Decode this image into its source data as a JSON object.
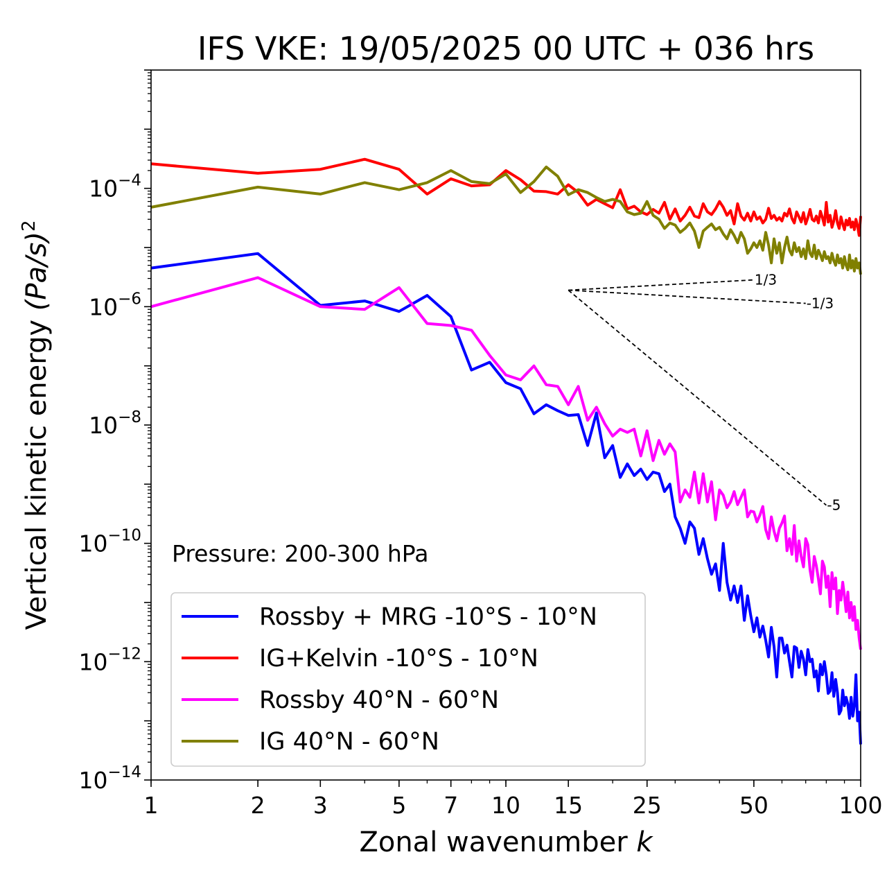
{
  "chart_data": {
    "type": "line",
    "title": "IFS VKE: 19/05/2025 00 UTC + 036 hrs",
    "xlabel": "Zonal wavenumber",
    "xlabel_var": "k",
    "ylabel": "Vertical kinetic energy",
    "ylabel_unit": "(Pa/s)",
    "ylabel_exp": "2",
    "xscale": "log",
    "yscale": "log",
    "xlim": [
      1,
      100
    ],
    "ylim": [
      1e-14,
      0.01
    ],
    "grid": false,
    "legend_position": "lower-left",
    "annotation": "Pressure: 200-300 hPa",
    "x_ticks": [
      1,
      2,
      3,
      5,
      7,
      10,
      15,
      25,
      50,
      100
    ],
    "x_tick_labels": [
      "1",
      "2",
      "3",
      "5",
      "7",
      "10",
      "15",
      "25",
      "50",
      "100"
    ],
    "y_ticks": [
      {
        "value": 0.0001,
        "base": "10",
        "exp": "−4"
      },
      {
        "value": 1e-06,
        "base": "10",
        "exp": "−6"
      },
      {
        "value": 1e-08,
        "base": "10",
        "exp": "−8"
      },
      {
        "value": 1e-10,
        "base": "10",
        "exp": "−10"
      },
      {
        "value": 1e-12,
        "base": "10",
        "exp": "−12"
      },
      {
        "value": 1e-14,
        "base": "10",
        "exp": "−14"
      }
    ],
    "reference_slopes": [
      {
        "label": "1/3",
        "exponent": 0.3333,
        "x_start": 15,
        "x_end": 50,
        "y_start": 1.9e-06
      },
      {
        "label": "-1/3",
        "exponent": -0.3333,
        "x_start": 15,
        "x_end": 70,
        "y_start": 1.9e-06
      },
      {
        "label": "-5",
        "exponent": -5,
        "x_start": 15,
        "x_end": 80,
        "y_start": 1.9e-06
      }
    ],
    "series": [
      {
        "name": "Rossby + MRG -10°S - 10°N",
        "color": "#0000ff",
        "x": [
          1,
          2,
          3,
          4,
          5,
          6,
          7,
          8,
          9,
          10,
          11,
          12,
          13,
          14,
          15,
          16,
          17,
          18,
          19,
          20,
          21,
          22,
          23,
          24,
          25,
          26,
          27,
          28,
          29,
          30,
          31,
          32,
          33,
          34,
          35,
          36,
          37,
          38,
          39,
          40,
          41,
          42,
          43,
          44,
          45,
          46,
          47,
          48,
          49,
          50,
          51,
          52,
          53,
          54,
          55,
          56,
          57,
          58,
          59,
          60,
          61,
          62,
          63,
          64,
          65,
          66,
          67,
          68,
          69,
          70,
          71,
          72,
          73,
          74,
          75,
          76,
          77,
          78,
          79,
          80,
          81,
          82,
          83,
          84,
          85,
          86,
          87,
          88,
          89,
          90,
          91,
          92,
          93,
          94,
          95,
          96,
          97,
          98,
          99,
          100
        ],
        "values": [
          4.5e-06,
          7.9e-06,
          1.05e-06,
          1.25e-06,
          8.3e-07,
          1.55e-06,
          6.8e-07,
          8.5e-08,
          1.15e-07,
          5.2e-08,
          4.1e-08,
          1.55e-08,
          2.2e-08,
          1.75e-08,
          1.45e-08,
          1.5e-08,
          4.5e-09,
          1.6e-08,
          2.8e-09,
          4.5e-09,
          1.3e-09,
          2.2e-09,
          1.4e-09,
          1.8e-09,
          1.2e-09,
          1.6e-09,
          1.5e-09,
          7.5e-10,
          1e-09,
          2.8e-10,
          1.8e-10,
          1e-10,
          2.3e-10,
          1.8e-10,
          6.5e-11,
          1.2e-10,
          5.5e-11,
          3e-11,
          4.5e-11,
          1.6e-11,
          1e-10,
          2.2e-11,
          1.1e-11,
          1.9e-11,
          1e-11,
          1.9e-11,
          5e-12,
          1.3e-11,
          6e-12,
          3.2e-12,
          5.5e-12,
          2.6e-12,
          4e-12,
          2.3e-12,
          1.2e-12,
          3.8e-12,
          1.8e-12,
          5.5e-13,
          2.5e-12,
          2.5e-12,
          1.4e-12,
          1.9e-12,
          1e-12,
          5.5e-13,
          1.8e-12,
          1.7e-12,
          8e-13,
          1.5e-12,
          1.1e-12,
          6e-13,
          1.6e-12,
          1e-12,
          1.1e-12,
          5.5e-13,
          7e-13,
          3.2e-13,
          9e-13,
          6e-13,
          1e-12,
          6e-13,
          2.9e-13,
          3.2e-13,
          6.5e-13,
          2.6e-13,
          5e-13,
          3e-13,
          1.3e-13,
          1.5e-13,
          3.3e-13,
          1.8e-13,
          2.5e-13,
          1.9e-13,
          1.1e-13,
          2.5e-13,
          1.2e-13,
          1.8e-13,
          6e-13,
          1e-13,
          1.4e-13,
          4e-14
        ]
      },
      {
        "name": "IG+Kelvin -10°S - 10°N",
        "color": "#ff0000",
        "x": [
          1,
          2,
          3,
          4,
          5,
          6,
          7,
          8,
          9,
          10,
          11,
          12,
          13,
          14,
          15,
          16,
          17,
          18,
          19,
          20,
          21,
          22,
          23,
          24,
          25,
          26,
          27,
          28,
          29,
          30,
          31,
          32,
          33,
          34,
          35,
          36,
          37,
          38,
          39,
          40,
          41,
          42,
          43,
          44,
          45,
          46,
          47,
          48,
          49,
          50,
          51,
          52,
          53,
          54,
          55,
          56,
          57,
          58,
          59,
          60,
          61,
          62,
          63,
          64,
          65,
          66,
          67,
          68,
          69,
          70,
          71,
          72,
          73,
          74,
          75,
          76,
          77,
          78,
          79,
          80,
          81,
          82,
          83,
          84,
          85,
          86,
          87,
          88,
          89,
          90,
          91,
          92,
          93,
          94,
          95,
          96,
          97,
          98,
          99,
          100
        ],
        "values": [
          0.00026,
          0.00018,
          0.00021,
          0.00031,
          0.00021,
          8e-05,
          0.000145,
          0.00011,
          0.000115,
          0.0002,
          0.00014,
          9e-05,
          8.8e-05,
          8e-05,
          0.000115,
          8.5e-05,
          5.2e-05,
          6.5e-05,
          5.5e-05,
          4.7e-05,
          9.5e-05,
          4.5e-05,
          5e-05,
          4e-05,
          3.6e-05,
          4.4e-05,
          3.8e-05,
          5.8e-05,
          3e-05,
          4.5e-05,
          2.8e-05,
          3.5e-05,
          4.8e-05,
          3.4e-05,
          3.2e-05,
          5.5e-05,
          4e-05,
          3.6e-05,
          4.5e-05,
          6e-05,
          4.8e-05,
          3.5e-05,
          4.2e-05,
          2.5e-05,
          5.5e-05,
          3.4e-05,
          2.9e-05,
          3.8e-05,
          2.8e-05,
          4e-05,
          3e-05,
          3.3e-05,
          2.6e-05,
          3e-05,
          4.6e-05,
          3.1e-05,
          3.5e-05,
          2.9e-05,
          3.2e-05,
          2.8e-05,
          3.8e-05,
          3.4e-05,
          4.5e-05,
          3.1e-05,
          2.6e-05,
          4e-05,
          3.3e-05,
          2.7e-05,
          3.9e-05,
          2.5e-05,
          3.2e-05,
          4.4e-05,
          3e-05,
          2.8e-05,
          3.4e-05,
          2.6e-05,
          4.1e-05,
          3.2e-05,
          2.4e-05,
          5.8e-05,
          2.7e-05,
          3.5e-05,
          2.2e-05,
          2.8e-05,
          4.2e-05,
          2.6e-05,
          2.1e-05,
          3.3e-05,
          2.5e-05,
          2e-05,
          2.9e-05,
          2.4e-05,
          3.1e-05,
          2.2e-05,
          2.7e-05,
          2e-05,
          3e-05,
          2.3e-05,
          1.6e-05,
          3.4e-05
        ]
      },
      {
        "name": "Rossby 40°N - 60°N",
        "color": "#ff00ff",
        "x": [
          1,
          2,
          3,
          4,
          5,
          6,
          7,
          8,
          9,
          10,
          11,
          12,
          13,
          14,
          15,
          16,
          17,
          18,
          19,
          20,
          21,
          22,
          23,
          24,
          25,
          26,
          27,
          28,
          29,
          30,
          31,
          32,
          33,
          34,
          35,
          36,
          37,
          38,
          39,
          40,
          41,
          42,
          43,
          44,
          45,
          46,
          47,
          48,
          49,
          50,
          51,
          52,
          53,
          54,
          55,
          56,
          57,
          58,
          59,
          60,
          61,
          62,
          63,
          64,
          65,
          66,
          67,
          68,
          69,
          70,
          71,
          72,
          73,
          74,
          75,
          76,
          77,
          78,
          79,
          80,
          81,
          82,
          83,
          84,
          85,
          86,
          87,
          88,
          89,
          90,
          91,
          92,
          93,
          94,
          95,
          96,
          97,
          98,
          99,
          100
        ],
        "values": [
          1e-06,
          3.1e-06,
          1e-06,
          9e-07,
          2.1e-06,
          5.2e-07,
          4.8e-07,
          4e-07,
          1.5e-07,
          7e-08,
          5.8e-08,
          1e-07,
          4.8e-08,
          4.5e-08,
          2.2e-08,
          4.5e-08,
          1.2e-08,
          2e-08,
          1.05e-08,
          6.5e-09,
          8.5e-09,
          7.5e-09,
          8.5e-09,
          3e-09,
          8e-09,
          2.5e-09,
          5.5e-09,
          3.2e-09,
          4.8e-09,
          3.5e-09,
          5e-10,
          8e-10,
          6e-10,
          1.6e-09,
          4.8e-10,
          1.5e-09,
          5e-10,
          1.1e-09,
          2.5e-10,
          8e-10,
          6.5e-10,
          4e-10,
          5e-10,
          7.5e-10,
          4.5e-10,
          6e-10,
          8e-10,
          2.8e-10,
          3.5e-10,
          3.4e-10,
          2.3e-10,
          3e-10,
          4.2e-10,
          1.7e-10,
          1.2e-10,
          2.8e-10,
          1.6e-10,
          1.1e-10,
          1.8e-10,
          2.2e-10,
          2.9e-10,
          7.5e-11,
          1.2e-10,
          6.5e-11,
          2e-10,
          5e-11,
          1.1e-10,
          6e-11,
          4e-11,
          1.2e-10,
          9.5e-11,
          3.5e-11,
          2.2e-11,
          6e-11,
          4.2e-11,
          2.5e-11,
          1.4e-11,
          5e-11,
          4e-11,
          1.8e-11,
          2.8e-11,
          8.5e-12,
          3.2e-11,
          1.7e-11,
          2.6e-11,
          6.5e-12,
          1.6e-11,
          1.1e-11,
          2.2e-11,
          1.3e-11,
          7e-12,
          1.5e-11,
          5.5e-12,
          1e-11,
          5e-12,
          8.5e-12,
          3.5e-12,
          5e-12,
          2.5e-12,
          1.6e-12
        ]
      },
      {
        "name": "IG 40°N - 60°N",
        "color": "#808000",
        "x": [
          1,
          2,
          3,
          4,
          5,
          6,
          7,
          8,
          9,
          10,
          11,
          12,
          13,
          14,
          15,
          16,
          17,
          18,
          19,
          20,
          21,
          22,
          23,
          24,
          25,
          26,
          27,
          28,
          29,
          30,
          31,
          32,
          33,
          34,
          35,
          36,
          37,
          38,
          39,
          40,
          41,
          42,
          43,
          44,
          45,
          46,
          47,
          48,
          49,
          50,
          51,
          52,
          53,
          54,
          55,
          56,
          57,
          58,
          59,
          60,
          61,
          62,
          63,
          64,
          65,
          66,
          67,
          68,
          69,
          70,
          71,
          72,
          73,
          74,
          75,
          76,
          77,
          78,
          79,
          80,
          81,
          82,
          83,
          84,
          85,
          86,
          87,
          88,
          89,
          90,
          91,
          92,
          93,
          94,
          95,
          96,
          97,
          98,
          99,
          100
        ],
        "values": [
          4.8e-05,
          0.000105,
          8e-05,
          0.000125,
          9.5e-05,
          0.000125,
          0.0002,
          0.00013,
          0.00012,
          0.000175,
          8.5e-05,
          0.00013,
          0.00023,
          0.00016,
          7.8e-05,
          9.5e-05,
          8.5e-05,
          7e-05,
          6e-05,
          6.5e-05,
          6e-05,
          4e-05,
          3.6e-05,
          3.8e-05,
          6e-05,
          3.5e-05,
          3e-05,
          2.1e-05,
          2.6e-05,
          2.4e-05,
          1.8e-05,
          2.1e-05,
          2.6e-05,
          1.9e-05,
          1e-05,
          1.9e-05,
          2.2e-05,
          2.5e-05,
          2e-05,
          2.2e-05,
          1.7e-05,
          1.4e-05,
          2e-05,
          1.6e-05,
          1.2e-05,
          1.8e-05,
          1.4e-05,
          8e-06,
          9.5e-06,
          1.2e-05,
          1e-05,
          1.3e-05,
          9e-06,
          1.8e-05,
          1.1e-05,
          5.5e-06,
          1.4e-05,
          8e-06,
          1.2e-05,
          5.5e-06,
          1e-05,
          1.5e-05,
          9e-06,
          7.5e-06,
          1.2e-05,
          8.5e-06,
          1e-05,
          7e-06,
          9.5e-06,
          6.5e-06,
          1.3e-05,
          8e-06,
          7e-06,
          1.1e-05,
          6.5e-06,
          9e-06,
          7.5e-06,
          6e-06,
          8.5e-06,
          6.5e-06,
          7e-06,
          5.5e-06,
          8e-06,
          6e-06,
          5e-06,
          7.5e-06,
          5.5e-06,
          6.5e-06,
          4.5e-06,
          7e-06,
          5e-06,
          4.2e-06,
          7.5e-06,
          4.5e-06,
          6e-06,
          4e-06,
          6.5e-06,
          4.5e-06,
          5.5e-06,
          3.5e-06
        ]
      }
    ]
  }
}
